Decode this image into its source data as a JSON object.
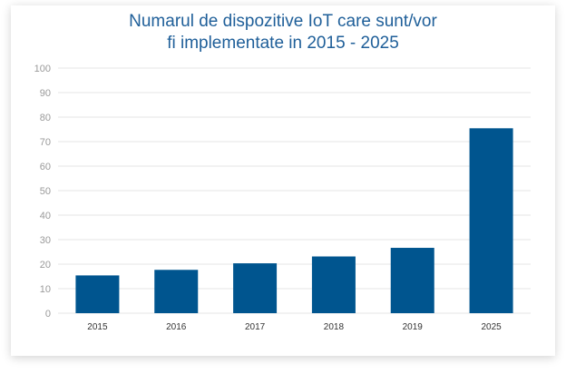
{
  "chart_data": {
    "type": "bar",
    "title_lines": [
      "Numarul de dispozitive IoT care sunt/vor",
      "fi implementate in 2015 - 2025"
    ],
    "categories": [
      "2015",
      "2016",
      "2017",
      "2018",
      "2019",
      "2025"
    ],
    "values": [
      15.41,
      17.68,
      20.35,
      23.14,
      26.66,
      75.44
    ],
    "ylim": [
      0,
      100
    ],
    "yticks": [
      0,
      10,
      20,
      30,
      40,
      50,
      60,
      70,
      80,
      90,
      100
    ],
    "xlabel": "",
    "ylabel": "",
    "grid": true,
    "colors": {
      "bar": "#00558f",
      "title": "#1f5f99",
      "grid": "#e6e6e6"
    }
  }
}
